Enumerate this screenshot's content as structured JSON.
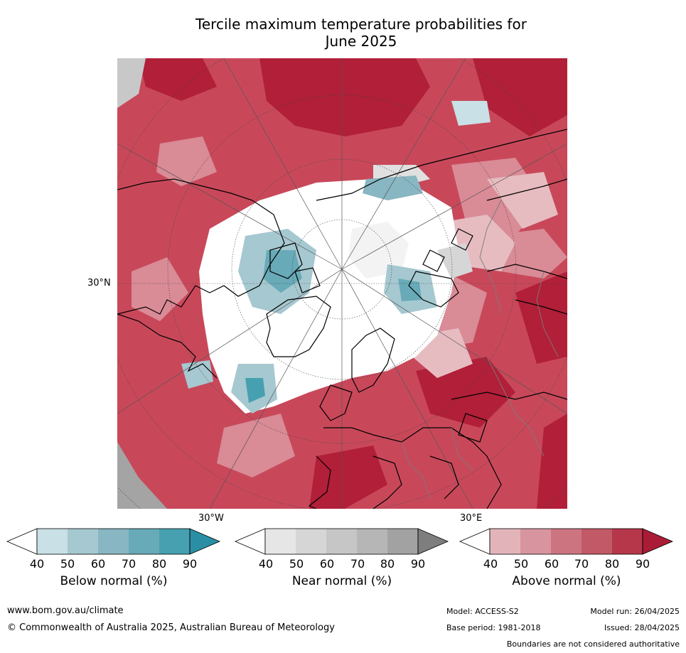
{
  "title": {
    "line1": "Tercile maximum temperature probabilities for",
    "line2": "June 2025"
  },
  "map": {
    "lat_label": "30°N",
    "lon_label_west": "30°W",
    "lon_label_east": "30°E",
    "background_color": "#c8485a",
    "coastline_color": "#000000",
    "border_color": "#7a7a7a",
    "graticule_color": "#444444"
  },
  "colorbars": [
    {
      "title": "Below normal (%)",
      "ticks": [
        "40",
        "50",
        "60",
        "70",
        "80",
        "90"
      ],
      "colors": [
        "#ffffff",
        "#c8e0e6",
        "#a6c8d0",
        "#88b6c2",
        "#68aab8",
        "#46a0b0",
        "#2a8ea4"
      ]
    },
    {
      "title": "Near normal (%)",
      "ticks": [
        "40",
        "50",
        "60",
        "70",
        "80",
        "90"
      ],
      "colors": [
        "#ffffff",
        "#e6e6e6",
        "#d6d6d6",
        "#c6c6c6",
        "#b6b6b6",
        "#a2a2a2",
        "#7e7e7e"
      ]
    },
    {
      "title": "Above normal (%)",
      "ticks": [
        "40",
        "50",
        "60",
        "70",
        "80",
        "90"
      ],
      "colors": [
        "#ffffff",
        "#e2b4ba",
        "#d8959f",
        "#cc7581",
        "#c25966",
        "#b6364a",
        "#aa1c36"
      ]
    }
  ],
  "footer": {
    "website": "www.bom.gov.au/climate",
    "copyright": "© Commonwealth of Australia 2025, Australian Bureau of Meteorology",
    "model": "Model: ACCESS-S2",
    "model_run": "Model run: 26/04/2025",
    "base_period": "Base period: 1981-2018",
    "issued": "Issued: 28/04/2025",
    "boundaries": "Boundaries are not considered authoritative"
  }
}
